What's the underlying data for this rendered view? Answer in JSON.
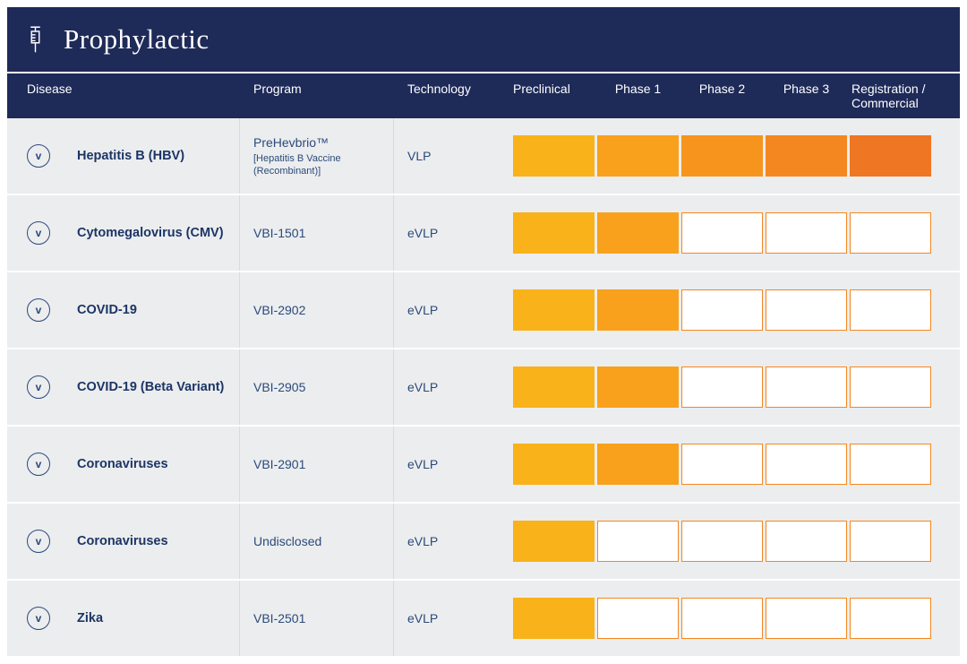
{
  "header": {
    "title": "Prophylactic"
  },
  "columns": {
    "disease": "Disease",
    "program": "Program",
    "technology": "Technology",
    "phases": [
      "Preclinical",
      "Phase 1",
      "Phase 2",
      "Phase 3",
      "Registration / Commercial"
    ]
  },
  "chevron_label": "v",
  "rows": [
    {
      "disease": "Hepatitis B (HBV)",
      "program": "PreHevbrio™",
      "program_sub": "[Hepatitis B Vaccine (Recombinant)]",
      "technology": "VLP",
      "phases_completed": 5
    },
    {
      "disease": "Cytomegalovirus (CMV)",
      "program": "VBI-1501",
      "program_sub": "",
      "technology": "eVLP",
      "phases_completed": 2
    },
    {
      "disease": "COVID-19",
      "program": "VBI-2902",
      "program_sub": "",
      "technology": "eVLP",
      "phases_completed": 2
    },
    {
      "disease": "COVID-19 (Beta Variant)",
      "program": "VBI-2905",
      "program_sub": "",
      "technology": "eVLP",
      "phases_completed": 2
    },
    {
      "disease": "Coronaviruses",
      "program": "VBI-2901",
      "program_sub": "",
      "technology": "eVLP",
      "phases_completed": 2
    },
    {
      "disease": "Coronaviruses",
      "program": "Undisclosed",
      "program_sub": "",
      "technology": "eVLP",
      "phases_completed": 1
    },
    {
      "disease": "Zika",
      "program": "VBI-2501",
      "program_sub": "",
      "technology": "eVLP",
      "phases_completed": 1
    }
  ],
  "colors": {
    "navy": "#1E2A58",
    "segment_fill": [
      "#F9B219",
      "#F9A11C",
      "#F7941E",
      "#F58720",
      "#EF7623"
    ],
    "segment_border": "#F58720"
  },
  "chart_data": {
    "type": "table",
    "title": "Prophylactic",
    "columns": [
      "Disease",
      "Program",
      "Technology",
      "Preclinical",
      "Phase 1",
      "Phase 2",
      "Phase 3",
      "Registration / Commercial"
    ],
    "rows": [
      {
        "disease": "Hepatitis B (HBV)",
        "program": "PreHevbrio™ [Hepatitis B Vaccine (Recombinant)]",
        "technology": "VLP",
        "phases_completed": 5,
        "stage_reached": "Registration / Commercial"
      },
      {
        "disease": "Cytomegalovirus (CMV)",
        "program": "VBI-1501",
        "technology": "eVLP",
        "phases_completed": 2,
        "stage_reached": "Phase 1"
      },
      {
        "disease": "COVID-19",
        "program": "VBI-2902",
        "technology": "eVLP",
        "phases_completed": 2,
        "stage_reached": "Phase 1"
      },
      {
        "disease": "COVID-19 (Beta Variant)",
        "program": "VBI-2905",
        "technology": "eVLP",
        "phases_completed": 2,
        "stage_reached": "Phase 1"
      },
      {
        "disease": "Coronaviruses",
        "program": "VBI-2901",
        "technology": "eVLP",
        "phases_completed": 2,
        "stage_reached": "Phase 1"
      },
      {
        "disease": "Coronaviruses",
        "program": "Undisclosed",
        "technology": "eVLP",
        "phases_completed": 1,
        "stage_reached": "Preclinical"
      },
      {
        "disease": "Zika",
        "program": "VBI-2501",
        "technology": "eVLP",
        "phases_completed": 1,
        "stage_reached": "Preclinical"
      }
    ]
  }
}
